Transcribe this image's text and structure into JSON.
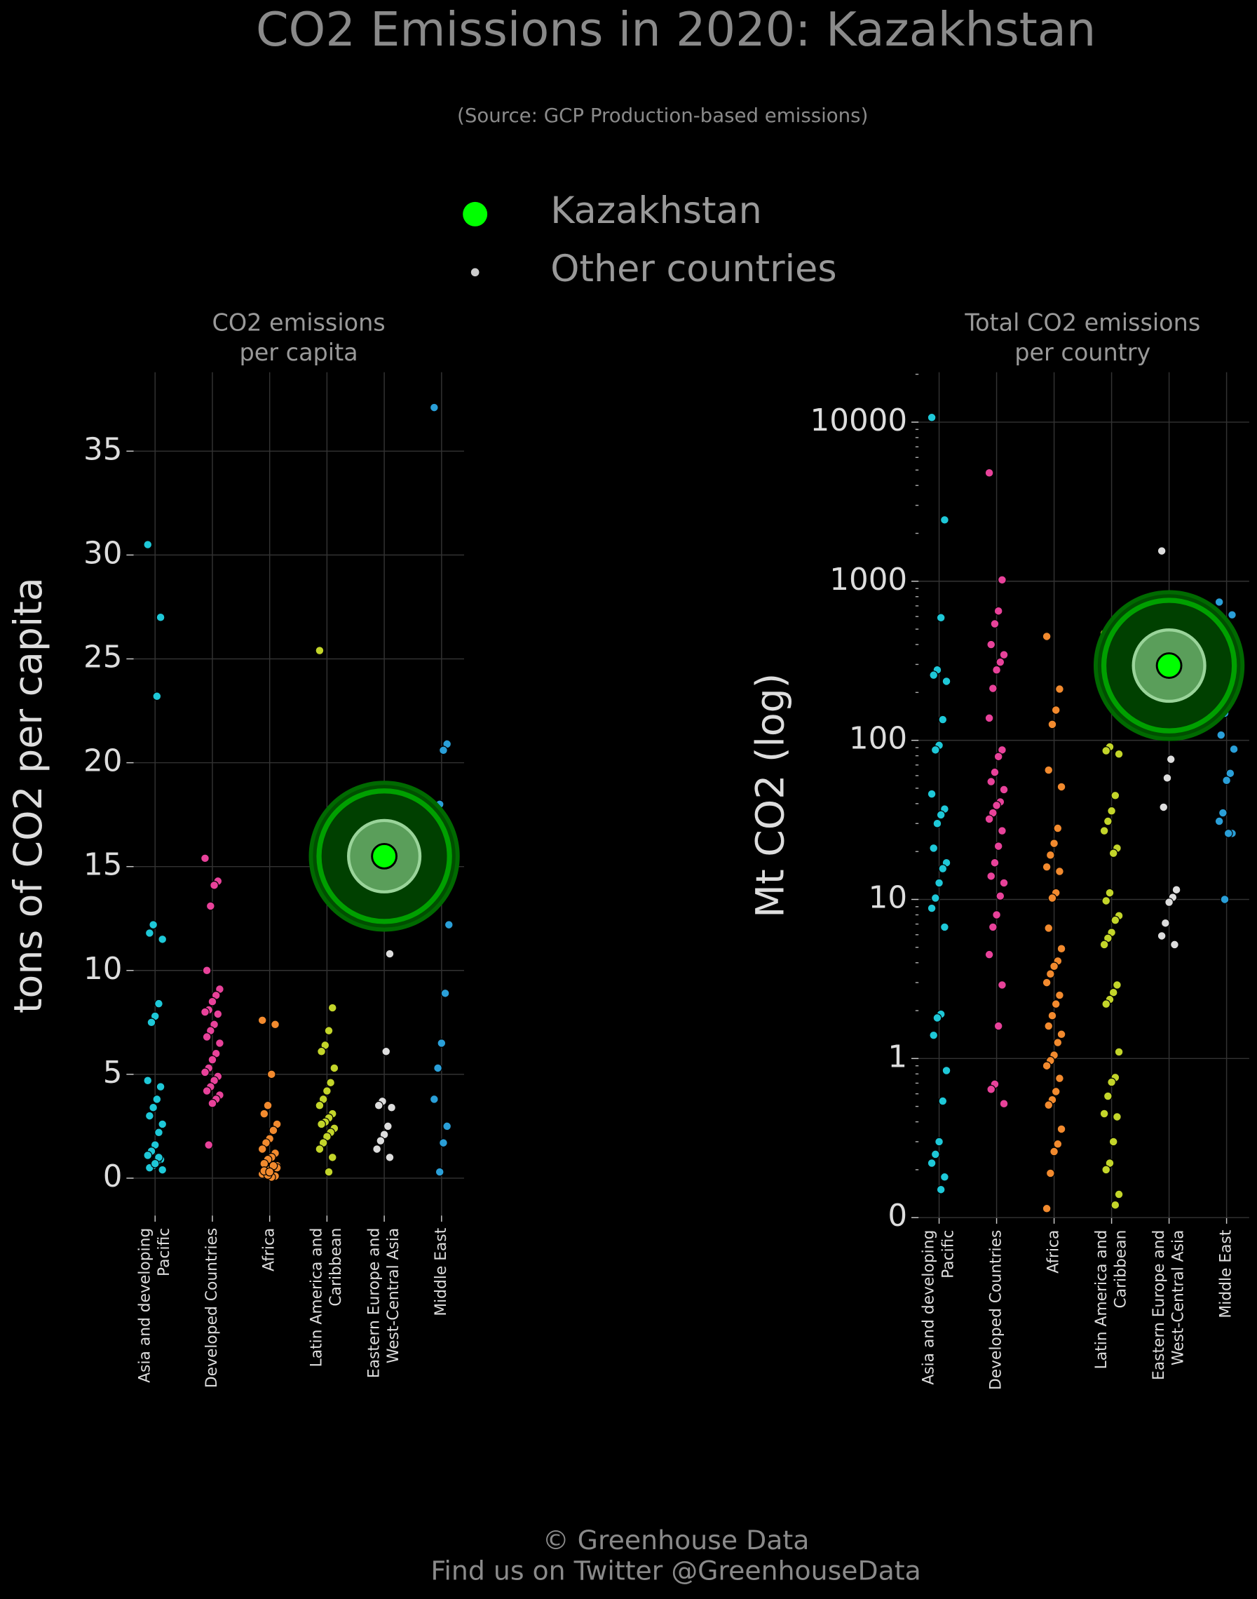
{
  "title": "CO2 Emissions in 2020: Kazakhstan",
  "subtitle": "(Source: GCP Production-based emissions)",
  "legend": [
    {
      "name": "Kazakhstan",
      "color": "#00ff00"
    },
    {
      "name": "Other countries",
      "color": "#cccccc"
    }
  ],
  "footer": [
    "© Greenhouse Data",
    "Find us on Twitter @GreenhouseData"
  ],
  "chart_data": [
    {
      "type": "strip",
      "title": "CO2 emissions\nper capita",
      "ylabel": "tons of CO2 per capita",
      "categories": [
        "Asia and developing\nPacific",
        "Developed Countries",
        "Africa",
        "Latin America and\nCaribbean",
        "Eastern Europe and\nWest-Central Asia",
        "Middle East"
      ],
      "colors": [
        "#1ec8d8",
        "#e8429a",
        "#f28a2e",
        "#c3d52a",
        "#dddddd",
        "#2a9fd8"
      ],
      "groups": [
        [
          30.5,
          27.0,
          23.2,
          12.2,
          11.8,
          11.5,
          8.4,
          7.8,
          7.5,
          4.7,
          4.4,
          3.8,
          3.4,
          3.0,
          2.6,
          2.2,
          1.6,
          1.3,
          1.1,
          0.9,
          0.8,
          0.6,
          0.5,
          0.4,
          1.0,
          0.7
        ],
        [
          15.4,
          14.3,
          14.1,
          13.1,
          10.0,
          9.1,
          8.8,
          8.5,
          8.1,
          8.0,
          7.9,
          7.4,
          7.1,
          6.8,
          6.5,
          6.0,
          5.7,
          5.3,
          5.1,
          4.9,
          4.7,
          4.4,
          4.2,
          4.0,
          3.8,
          3.6,
          1.6
        ],
        [
          7.6,
          7.4,
          5.0,
          3.5,
          3.1,
          2.6,
          2.3,
          1.9,
          1.7,
          1.4,
          1.2,
          1.0,
          0.9,
          0.7,
          0.6,
          0.5,
          0.4,
          0.3,
          0.2,
          0.1,
          0.05,
          0.15,
          0.35,
          0.5,
          0.6,
          0.3
        ],
        [
          25.4,
          8.2,
          7.1,
          6.4,
          6.1,
          5.3,
          4.6,
          4.2,
          3.8,
          3.5,
          3.1,
          2.9,
          2.7,
          2.6,
          2.4,
          2.2,
          2.0,
          1.7,
          1.4,
          1.0,
          0.3
        ],
        [
          12.5,
          10.8,
          6.1,
          3.7,
          3.5,
          3.4,
          2.5,
          2.1,
          1.8,
          1.4,
          1.0
        ],
        [
          37.1,
          20.9,
          20.6,
          18.0,
          15.2,
          12.2,
          8.9,
          6.5,
          5.3,
          3.8,
          2.5,
          1.7,
          0.3
        ]
      ],
      "highlight": {
        "category": 4,
        "value": 15.5
      },
      "ylim": [
        -1.8,
        38.8
      ],
      "yticks": [
        0,
        5,
        10,
        15,
        20,
        25,
        30,
        35
      ],
      "log": false,
      "grid": true
    },
    {
      "type": "strip",
      "title": "Total CO2 emissions\nper country",
      "ylabel": "Mt CO2 (log)",
      "categories": [
        "Asia and developing\nPacific",
        "Developed Countries",
        "Africa",
        "Latin America and\nCaribbean",
        "Eastern Europe and\nWest-Central Asia",
        "Middle East"
      ],
      "colors": [
        "#1ec8d8",
        "#e8429a",
        "#f28a2e",
        "#c3d52a",
        "#dddddd",
        "#2a9fd8"
      ],
      "groups": [
        [
          10700,
          2430,
          590,
          277,
          257,
          235,
          135,
          93,
          87,
          46,
          37,
          34,
          30,
          21,
          17,
          15.6,
          12.7,
          10.2,
          8.8,
          6.7,
          1.9,
          1.8,
          1.4,
          0.84,
          0.54,
          0.3,
          0.25,
          0.22,
          0.18,
          0.15
        ],
        [
          4800,
          1020,
          650,
          540,
          400,
          345,
          310,
          277,
          212,
          138,
          87,
          79,
          63,
          55,
          49,
          41,
          39,
          35,
          32,
          27,
          21.6,
          17,
          14,
          12.7,
          10.5,
          8.0,
          6.7,
          4.5,
          2.9,
          1.6,
          0.69,
          0.64,
          0.52
        ],
        [
          450,
          210,
          155,
          126,
          65,
          51,
          28,
          22.5,
          19,
          16,
          15,
          11,
          10.2,
          6.6,
          4.9,
          4.1,
          3.8,
          3.4,
          3.0,
          2.5,
          2.2,
          1.86,
          1.6,
          1.42,
          1.26,
          1.05,
          0.97,
          0.9,
          0.75,
          0.62,
          0.55,
          0.51,
          0.36,
          0.29,
          0.26,
          0.19,
          0.114
        ],
        [
          470,
          360,
          163,
          91,
          86,
          82,
          45,
          36,
          31,
          27,
          21,
          19.5,
          11,
          9.8,
          7.9,
          7.4,
          6.2,
          5.7,
          5.2,
          2.9,
          2.6,
          2.35,
          2.2,
          1.1,
          0.76,
          0.71,
          0.58,
          0.45,
          0.43,
          0.3,
          0.22,
          0.2,
          0.14,
          0.12
        ],
        [
          1550,
          113,
          76,
          58,
          38,
          11.5,
          10.3,
          9.6,
          7.1,
          5.9,
          5.2
        ],
        [
          740,
          615,
          210,
          148,
          108,
          88,
          62,
          56,
          35,
          31,
          26,
          26,
          10
        ]
      ],
      "highlight": {
        "category": 4,
        "value": 295
      },
      "ylim": [
        0.1,
        20600
      ],
      "log": true,
      "minor_ticks": true,
      "yticks": [
        {
          "value": 0.1,
          "label": "0"
        },
        1,
        10,
        100,
        1000,
        10000
      ],
      "grid": true
    }
  ]
}
